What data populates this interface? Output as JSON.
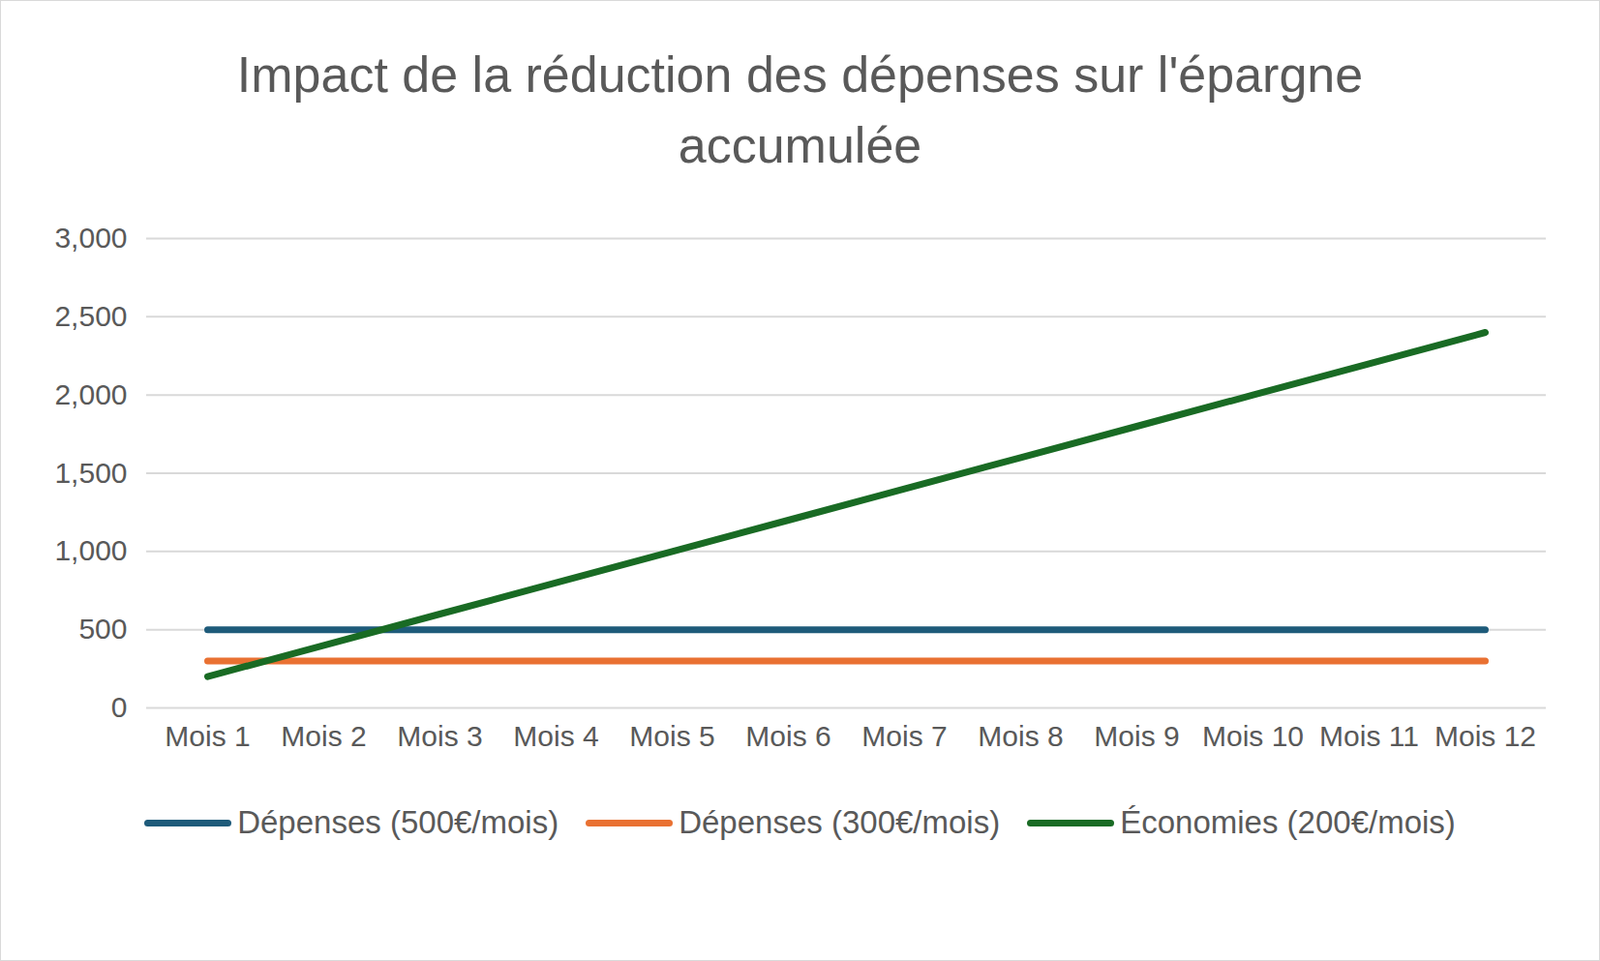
{
  "chart_data": {
    "type": "line",
    "title": "Impact de la réduction des dépenses sur l'épargne accumulée",
    "categories": [
      "Mois 1",
      "Mois 2",
      "Mois 3",
      "Mois 4",
      "Mois 5",
      "Mois 6",
      "Mois 7",
      "Mois 8",
      "Mois 9",
      "Mois 10",
      "Mois 11",
      "Mois 12"
    ],
    "series": [
      {
        "name": "Dépenses (500€/mois)",
        "color": "#1e5b7a",
        "values": [
          500,
          500,
          500,
          500,
          500,
          500,
          500,
          500,
          500,
          500,
          500,
          500
        ]
      },
      {
        "name": "Dépenses (300€/mois)",
        "color": "#e97132",
        "values": [
          300,
          300,
          300,
          300,
          300,
          300,
          300,
          300,
          300,
          300,
          300,
          300
        ]
      },
      {
        "name": "Économies (200€/mois)",
        "color": "#196b24",
        "values": [
          200,
          400,
          600,
          800,
          1000,
          1200,
          1400,
          1600,
          1800,
          2000,
          2200,
          2400
        ]
      }
    ],
    "ylim": [
      0,
      3000
    ],
    "yticks": [
      0,
      500,
      1000,
      1500,
      2000,
      2500,
      3000
    ],
    "grid": true,
    "legend": "bottom"
  }
}
